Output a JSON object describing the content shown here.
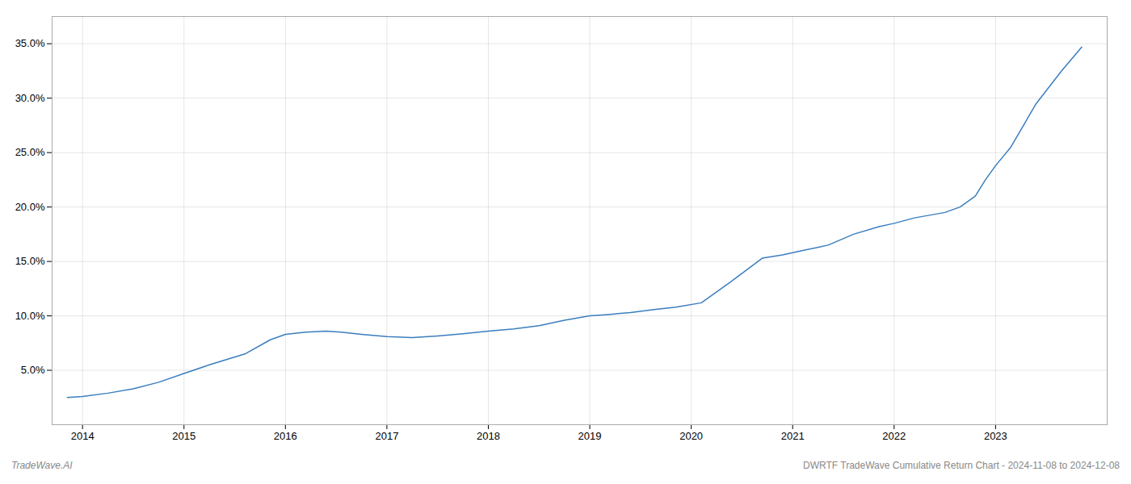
{
  "chart_data": {
    "type": "line",
    "x": [
      2013.85,
      2014.0,
      2014.25,
      2014.5,
      2014.75,
      2015.0,
      2015.25,
      2015.6,
      2015.85,
      2016.0,
      2016.2,
      2016.4,
      2016.55,
      2016.75,
      2017.0,
      2017.25,
      2017.5,
      2017.75,
      2018.0,
      2018.25,
      2018.5,
      2018.75,
      2019.0,
      2019.15,
      2019.4,
      2019.65,
      2019.85,
      2020.1,
      2020.4,
      2020.7,
      2020.9,
      2021.1,
      2021.35,
      2021.6,
      2021.85,
      2022.0,
      2022.2,
      2022.5,
      2022.65,
      2022.8,
      2022.9,
      2023.0,
      2023.15,
      2023.4,
      2023.65,
      2023.85
    ],
    "values": [
      2.5,
      2.6,
      2.9,
      3.3,
      3.9,
      4.7,
      5.5,
      6.5,
      7.8,
      8.3,
      8.5,
      8.6,
      8.5,
      8.3,
      8.1,
      8.0,
      8.15,
      8.35,
      8.6,
      8.8,
      9.1,
      9.6,
      10.0,
      10.1,
      10.3,
      10.6,
      10.8,
      11.2,
      13.2,
      15.3,
      15.6,
      16.0,
      16.5,
      17.5,
      18.2,
      18.5,
      19.0,
      19.5,
      20.0,
      21.0,
      22.5,
      23.8,
      25.5,
      29.5,
      32.5,
      34.7
    ],
    "color": "#3a7ebf",
    "xlim": [
      2013.7,
      2024.1
    ],
    "xticks": [
      2014,
      2015,
      2016,
      2017,
      2018,
      2019,
      2020,
      2021,
      2022,
      2023
    ],
    "ylim": [
      0,
      37.5
    ],
    "yticks": [
      {
        "value": 5.0,
        "label": "5.0%"
      },
      {
        "value": 10.0,
        "label": "10.0%"
      },
      {
        "value": 15.0,
        "label": "15.0%"
      },
      {
        "value": 20.0,
        "label": "20.0%"
      },
      {
        "value": 25.0,
        "label": "25.0%"
      },
      {
        "value": 30.0,
        "label": "30.0%"
      },
      {
        "value": 35.0,
        "label": "35.0%"
      }
    ],
    "grid": true,
    "annotations": [
      "TradeWave.AI",
      "DWRTF TradeWave Cumulative Return Chart - 2024-11-08 to 2024-12-08"
    ]
  }
}
